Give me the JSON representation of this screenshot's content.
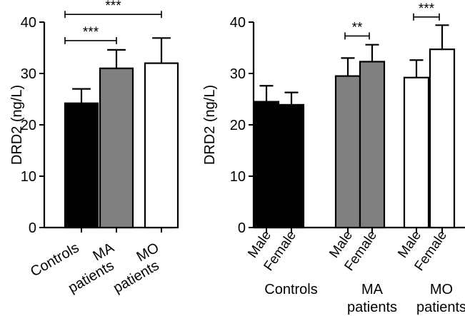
{
  "chart_data": [
    {
      "type": "bar",
      "ylabel": "DRD2 (ng/L)",
      "ylim": [
        0,
        40
      ],
      "yticks": [
        0,
        10,
        20,
        30,
        40
      ],
      "categories": [
        "Controls",
        "MA patients",
        "MO patients"
      ],
      "category_lines": [
        [
          "Controls"
        ],
        [
          "MA",
          "patients"
        ],
        [
          "MO",
          "patients"
        ]
      ],
      "values": [
        24.2,
        31.0,
        32.0
      ],
      "errors": [
        2.8,
        3.6,
        4.9
      ],
      "colors": [
        "#000000",
        "#808080",
        "#ffffff"
      ],
      "significance": [
        {
          "from": 0,
          "to": 1,
          "label": "***",
          "y": 36.4
        },
        {
          "from": 0,
          "to": 2,
          "label": "***",
          "y": 41.5
        }
      ]
    },
    {
      "type": "bar",
      "ylabel": "DRD2 (ng/L)",
      "ylim": [
        0,
        40
      ],
      "yticks": [
        0,
        10,
        20,
        30,
        40
      ],
      "sub_categories": [
        "Male",
        "Female"
      ],
      "groups": [
        {
          "lines": [
            "Controls"
          ],
          "values": [
            24.5,
            23.9
          ],
          "errors": [
            3.1,
            2.4
          ],
          "color": "#000000"
        },
        {
          "lines": [
            "MA",
            "patients"
          ],
          "values": [
            29.5,
            32.3
          ],
          "errors": [
            3.5,
            3.3
          ],
          "color": "#808080"
        },
        {
          "lines": [
            "MO",
            "patients"
          ],
          "values": [
            29.2,
            34.7
          ],
          "errors": [
            3.4,
            4.7
          ],
          "color": "#ffffff"
        }
      ],
      "significance": [
        {
          "group": 1,
          "label": "**",
          "y": 37.3
        },
        {
          "group": 2,
          "label": "***",
          "y": 41.0
        }
      ]
    }
  ]
}
